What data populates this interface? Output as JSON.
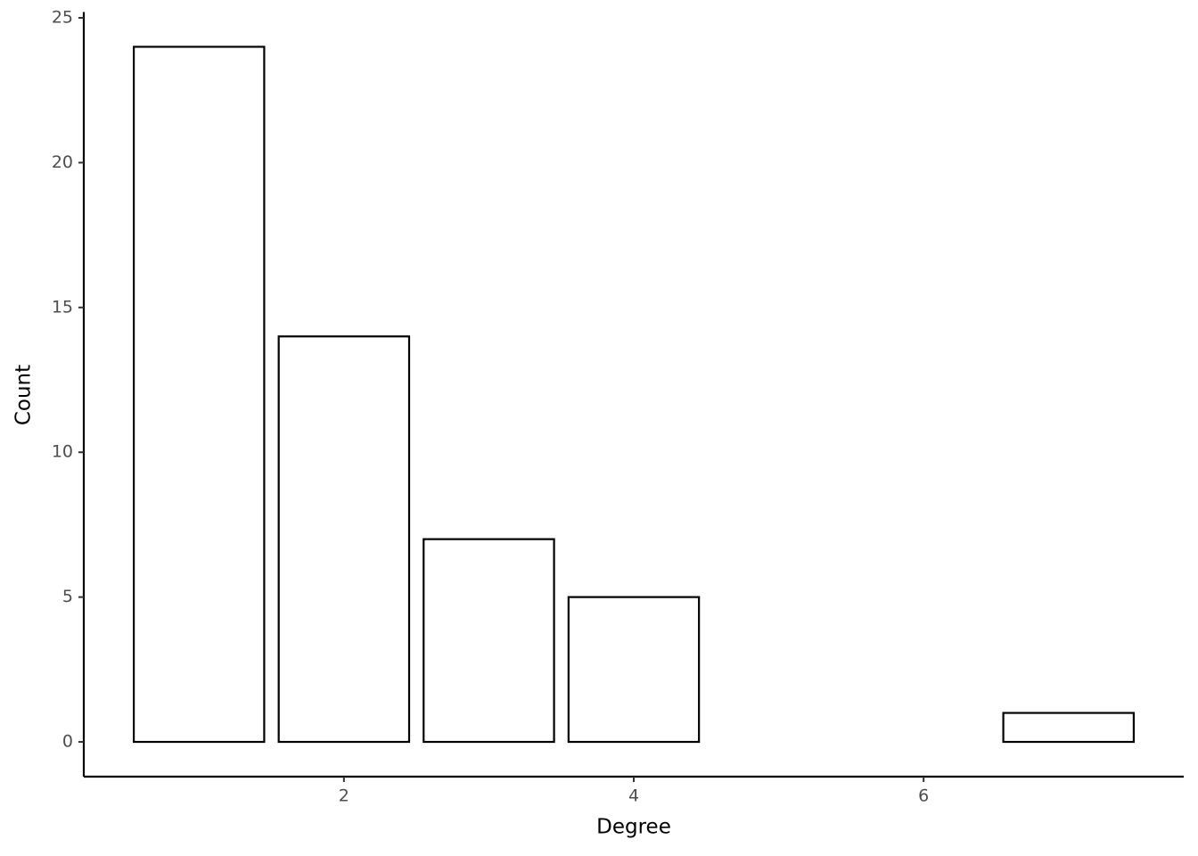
{
  "chart_data": {
    "type": "bar",
    "x_title": "Degree",
    "y_title": "Count",
    "x": [
      1,
      2,
      3,
      4,
      7
    ],
    "values": [
      24,
      14,
      7,
      5,
      1
    ],
    "color": "#ffffff",
    "edge_color": "#000000",
    "xlim": [
      0.205,
      7.795
    ],
    "xticks": [
      2,
      4,
      6
    ],
    "ylim": [
      -1.2,
      25.2
    ],
    "yticks": [
      0,
      5,
      10,
      15,
      20,
      25
    ],
    "grid": false
  }
}
